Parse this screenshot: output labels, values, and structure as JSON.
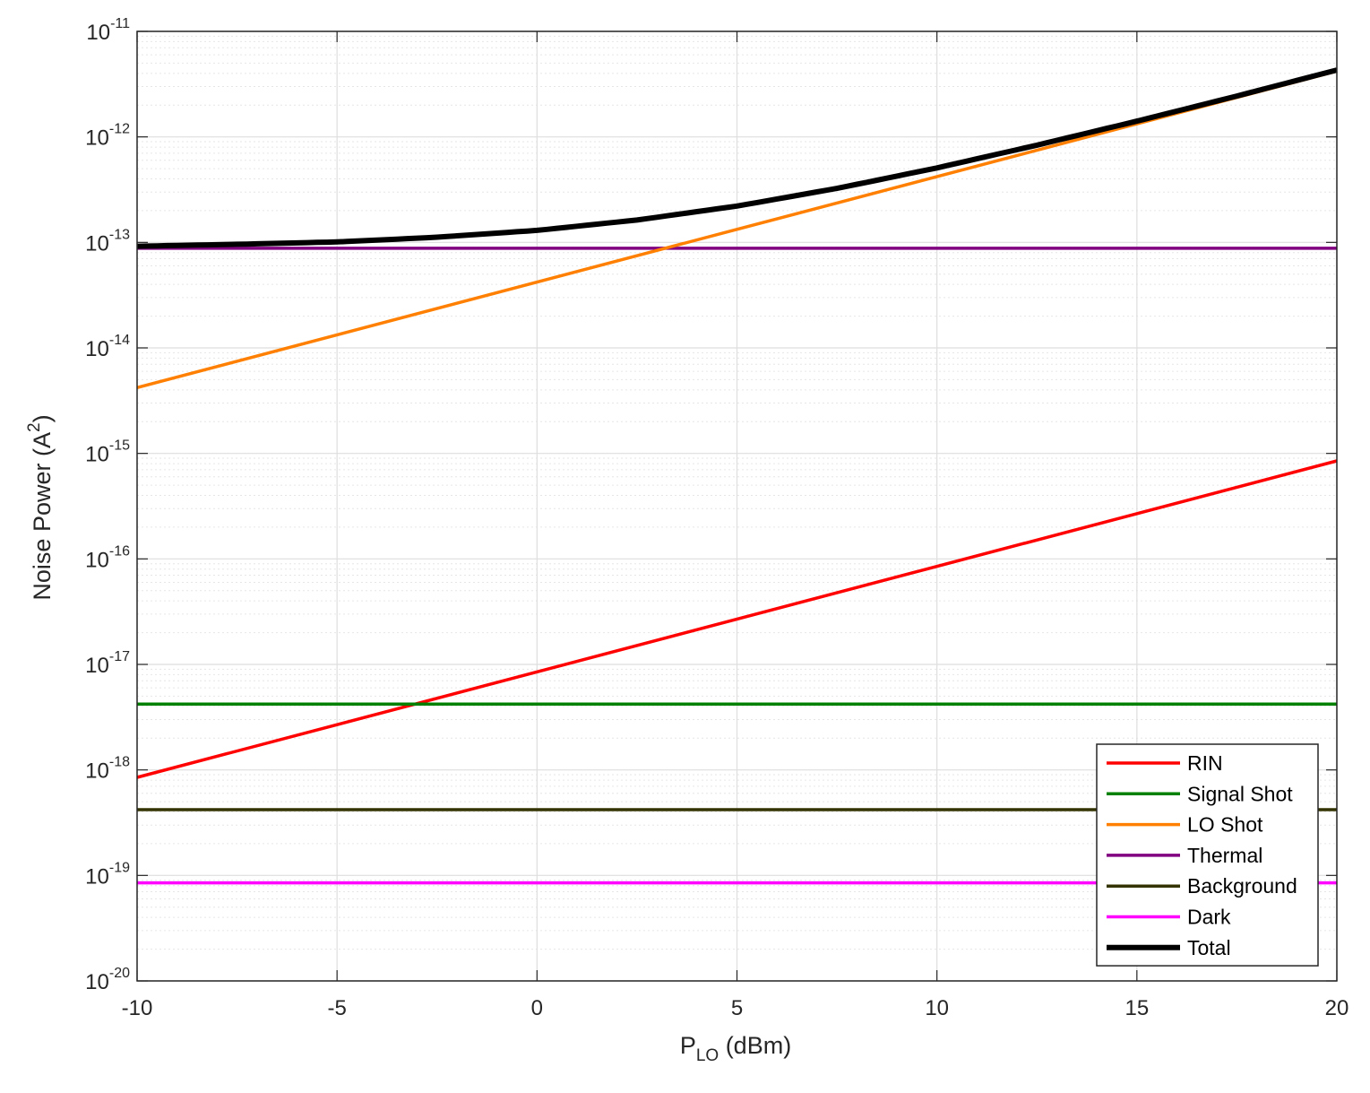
{
  "chart_data": {
    "type": "line",
    "title": "",
    "xlabel": {
      "main": "P",
      "sub": "LO",
      "rest": " (dBm)"
    },
    "ylabel": {
      "main": "Noise Power (A",
      "sup": "2",
      "rest": ")"
    },
    "xlim": [
      -10,
      20
    ],
    "ylim": [
      1e-20,
      1e-11
    ],
    "yscale": "log",
    "grid": true,
    "minor_grid": true,
    "legend_position": "bottom-right",
    "x_ticks": [
      "-10",
      "-5",
      "0",
      "5",
      "10",
      "15",
      "20"
    ],
    "y_ticks": [
      {
        "base": "10",
        "exp": "-20"
      },
      {
        "base": "10",
        "exp": "-19"
      },
      {
        "base": "10",
        "exp": "-18"
      },
      {
        "base": "10",
        "exp": "-17"
      },
      {
        "base": "10",
        "exp": "-16"
      },
      {
        "base": "10",
        "exp": "-15"
      },
      {
        "base": "10",
        "exp": "-14"
      },
      {
        "base": "10",
        "exp": "-13"
      },
      {
        "base": "10",
        "exp": "-12"
      },
      {
        "base": "10",
        "exp": "-11"
      }
    ],
    "series": [
      {
        "name": "RIN",
        "color": "#ff0000",
        "x": [
          -10,
          20
        ],
        "y": [
          8.5e-19,
          8.5e-16
        ]
      },
      {
        "name": "Signal Shot",
        "color": "#008000",
        "x": [
          -10,
          20
        ],
        "y": [
          4.2e-18,
          4.2e-18
        ]
      },
      {
        "name": "LO Shot",
        "color": "#ff8000",
        "x": [
          -10,
          20
        ],
        "y": [
          4.2e-15,
          4.2e-12
        ]
      },
      {
        "name": "Thermal",
        "color": "#800080",
        "x": [
          -10,
          20
        ],
        "y": [
          8.8e-14,
          8.8e-14
        ]
      },
      {
        "name": "Background",
        "color": "#333300",
        "x": [
          -10,
          20
        ],
        "y": [
          4.2e-19,
          4.2e-19
        ]
      },
      {
        "name": "Dark",
        "color": "#ff00ff",
        "x": [
          -10,
          20
        ],
        "y": [
          8.5e-20,
          8.5e-20
        ]
      },
      {
        "name": "Total",
        "color": "#000000",
        "x": [
          -10,
          -7.5,
          -5,
          -2.5,
          0,
          2.5,
          5,
          7.5,
          10,
          12.5,
          15,
          17.5,
          20
        ],
        "y": [
          9.2e-14,
          9.6e-14,
          1.01e-13,
          1.12e-13,
          1.3e-13,
          1.63e-13,
          2.21e-13,
          3.25e-13,
          5.08e-13,
          8.35e-13,
          1.41e-12,
          2.44e-12,
          4.3e-12
        ]
      }
    ]
  }
}
